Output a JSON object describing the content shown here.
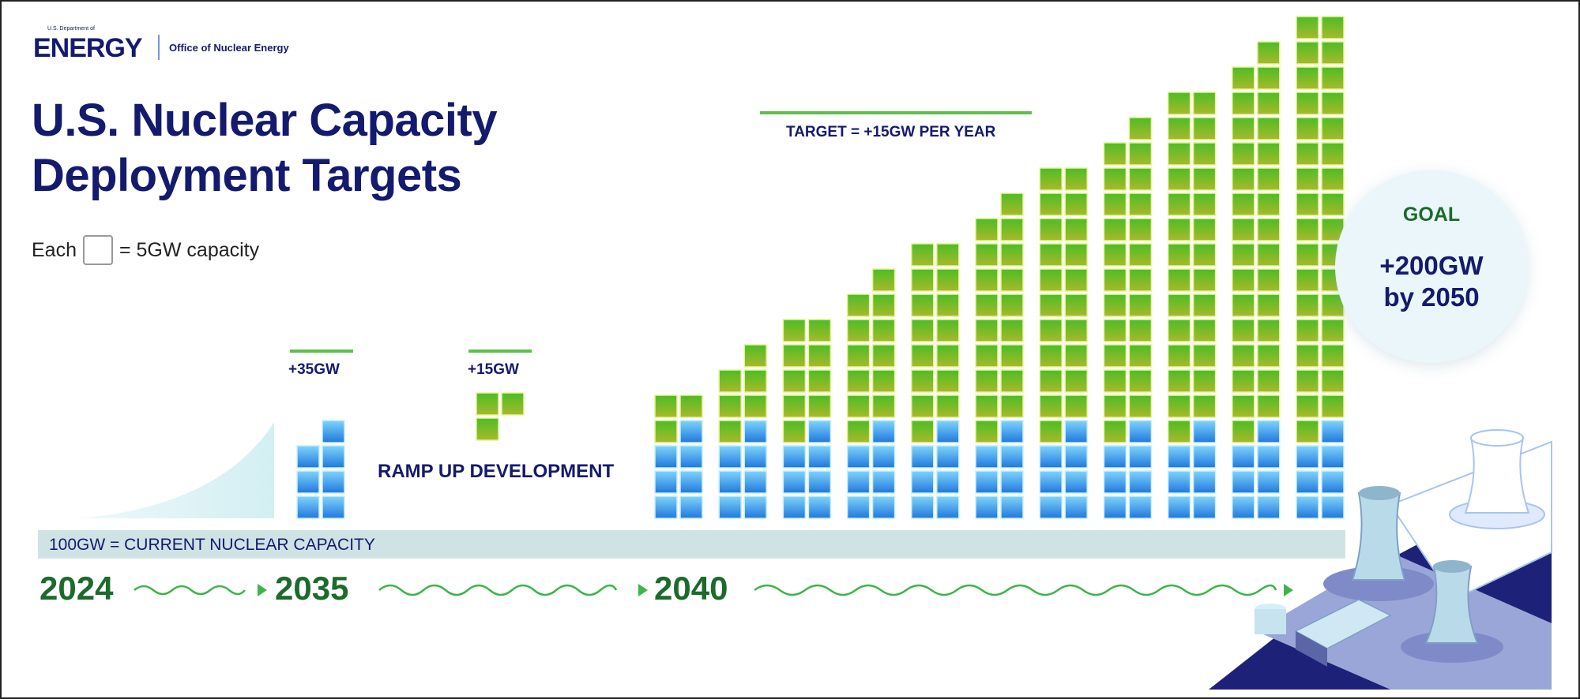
{
  "header": {
    "logo_small": "U.S. Department of",
    "logo": "ENERGY",
    "office": "Office of Nuclear Energy",
    "title_line1": "U.S. Nuclear Capacity",
    "title_line2": "Deployment Targets"
  },
  "legend": {
    "prefix": "Each",
    "suffix": "= 5GW capacity"
  },
  "baseline_label": "100GW = CURRENT NUCLEAR CAPACITY",
  "timeline": {
    "years": [
      "2024",
      "2035",
      "2040"
    ]
  },
  "labels": {
    "plus35": "+35GW",
    "plus15": "+15GW",
    "ramp": "RAMP UP DEVELOPMENT",
    "target": "TARGET = +15GW PER YEAR"
  },
  "goal": {
    "title": "GOAL",
    "value_line1": "+200GW",
    "value_line2": "by 2050"
  },
  "colors": {
    "navy": "#141a6e",
    "green_text": "#1c6a2c",
    "green_block": "#6cc72a",
    "blue_block": "#2f95ea",
    "baseline_band": "#cfe3e4"
  },
  "chart_data": {
    "type": "bar",
    "stacked": true,
    "unit": "GW",
    "gw_per_block": 5,
    "baseline_gw": 100,
    "segment_2035": {
      "label": "+35GW",
      "blue_gw": 35
    },
    "ramp_segment": {
      "label": "+15GW",
      "green_gw": 15
    },
    "target_per_year_gw": 15,
    "yearly_bars": [
      {
        "blue_gw": 35,
        "green_gw": 15
      },
      {
        "blue_gw": 35,
        "green_gw": 30
      },
      {
        "blue_gw": 35,
        "green_gw": 45
      },
      {
        "blue_gw": 35,
        "green_gw": 60
      },
      {
        "blue_gw": 35,
        "green_gw": 75
      },
      {
        "blue_gw": 35,
        "green_gw": 90
      },
      {
        "blue_gw": 35,
        "green_gw": 105
      },
      {
        "blue_gw": 35,
        "green_gw": 120
      },
      {
        "blue_gw": 35,
        "green_gw": 135
      },
      {
        "blue_gw": 35,
        "green_gw": 150
      },
      {
        "blue_gw": 35,
        "green_gw": 165
      }
    ],
    "goal_gw": 200,
    "goal_year": 2050
  }
}
